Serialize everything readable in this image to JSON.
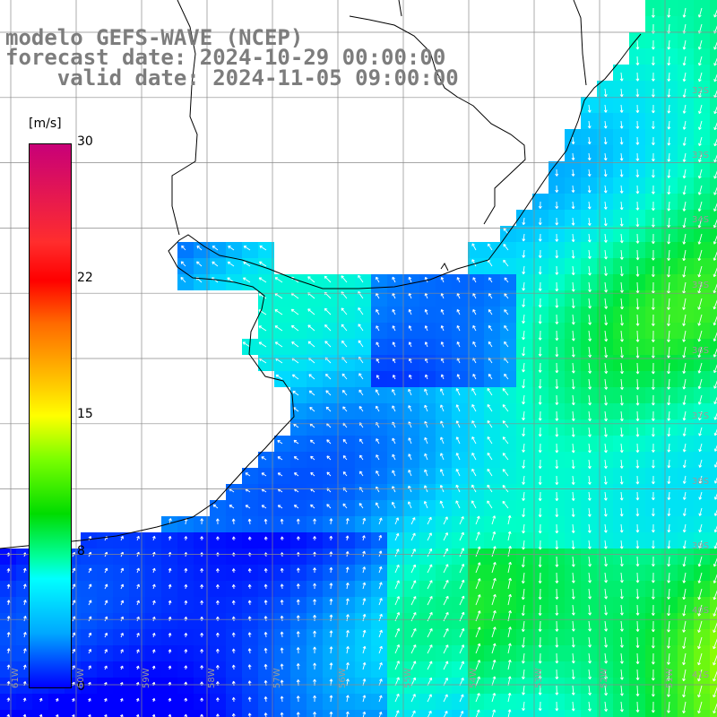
{
  "header": {
    "line1": "modelo GEFS-WAVE (NCEP)",
    "line2": "forecast date: 2024-10-29 00:00:00",
    "line3": "    valid date: 2024-11-05 09:00:00"
  },
  "colorbar": {
    "unit": "[m/s]",
    "ticks": [
      "30",
      "22",
      "15",
      "8",
      "0"
    ],
    "colors": [
      "#c80078",
      "#ff0000",
      "#ffff00",
      "#00dc00",
      "#00ffff",
      "#0000ff"
    ]
  },
  "map": {
    "lat_labels": [
      "32S",
      "33S",
      "34S",
      "35S",
      "36S",
      "37S",
      "38S",
      "39S",
      "40S",
      "41S"
    ],
    "lon_labels": [
      "61W",
      "60W",
      "59W",
      "58W",
      "57W",
      "56W",
      "55W",
      "54W",
      "53W",
      "52W",
      "51W"
    ]
  }
}
